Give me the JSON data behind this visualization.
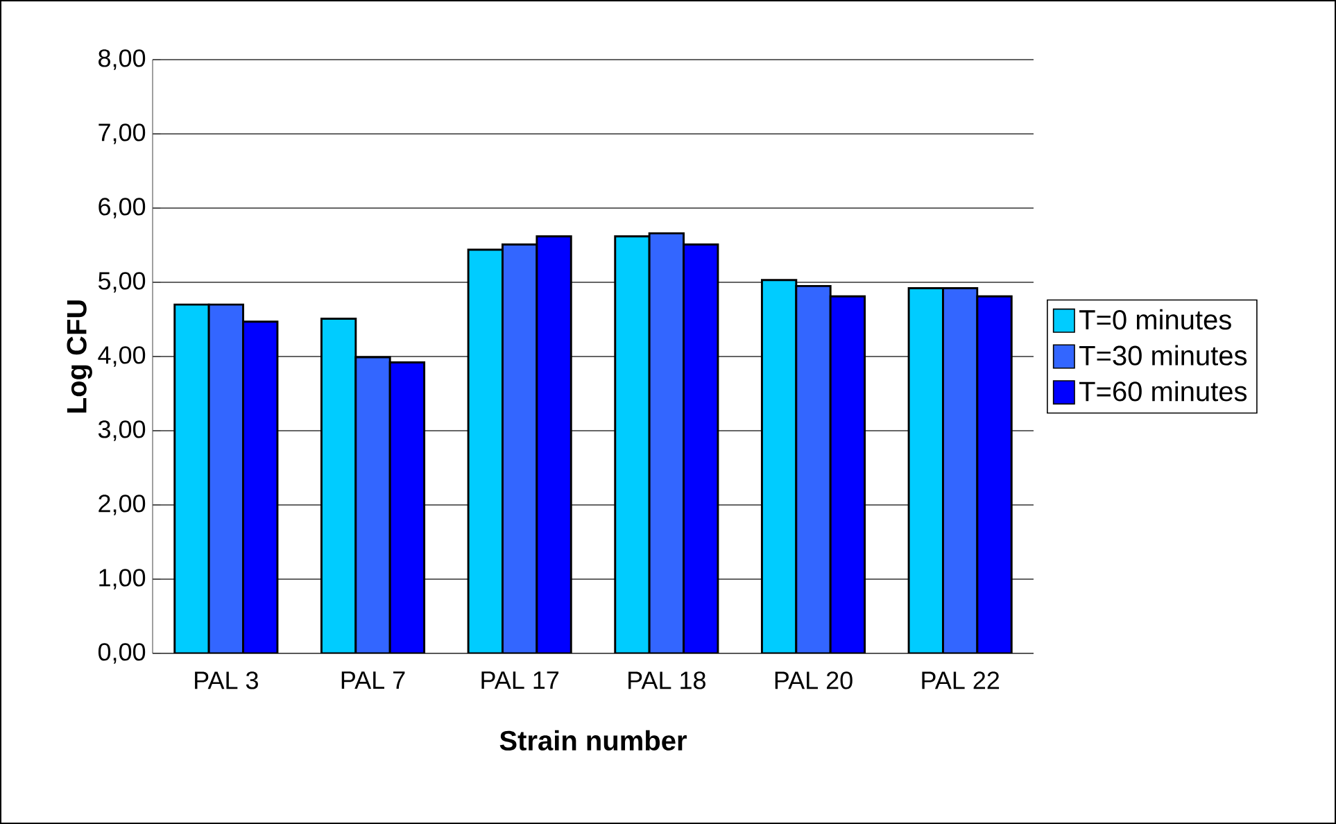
{
  "chart_data": {
    "type": "bar",
    "xlabel": "Strain number",
    "ylabel": "Log CFU",
    "categories": [
      "PAL 3",
      "PAL 7",
      "PAL 17",
      "PAL 18",
      "PAL 20",
      "PAL 22"
    ],
    "series": [
      {
        "name": "T=0 minutes",
        "color": "#00ccff",
        "values": [
          4.7,
          4.51,
          5.44,
          5.62,
          5.03,
          4.92
        ]
      },
      {
        "name": "T=30 minutes",
        "color": "#3366ff",
        "values": [
          4.7,
          3.99,
          5.51,
          5.66,
          4.95,
          4.92
        ]
      },
      {
        "name": "T=60 minutes",
        "color": "#0000ff",
        "values": [
          4.47,
          3.92,
          5.62,
          5.51,
          4.81,
          4.81
        ]
      }
    ],
    "ylim": [
      0,
      8
    ],
    "yticks": [
      {
        "value": 0,
        "label": "0,00"
      },
      {
        "value": 1,
        "label": "1,00"
      },
      {
        "value": 2,
        "label": "2,00"
      },
      {
        "value": 3,
        "label": "3,00"
      },
      {
        "value": 4,
        "label": "4,00"
      },
      {
        "value": 5,
        "label": "5,00"
      },
      {
        "value": 6,
        "label": "6,00"
      },
      {
        "value": 7,
        "label": "7,00"
      },
      {
        "value": 8,
        "label": "8,00"
      }
    ],
    "grid": "y",
    "legend": "right"
  }
}
